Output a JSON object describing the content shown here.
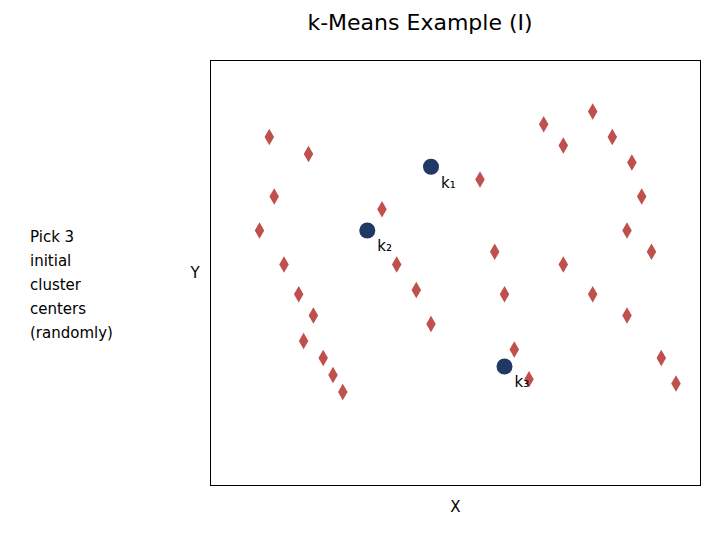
{
  "chart_data": {
    "type": "scatter",
    "title": "k-Means Example (I)",
    "x_label": "X",
    "y_label": "Y",
    "xlim": [
      0,
      10
    ],
    "ylim": [
      0,
      10
    ],
    "xticks": [],
    "yticks": [],
    "tick_labels": false,
    "grid": false,
    "series": [
      {
        "x": [
          1.2,
          2.0,
          1.3,
          1.0,
          1.5,
          1.8,
          2.1,
          1.9,
          2.3,
          2.5,
          2.7,
          3.5,
          3.8,
          4.2,
          4.5,
          5.5,
          5.8,
          6.0,
          6.2,
          6.5,
          6.8,
          7.2,
          7.8,
          8.2,
          8.6,
          8.8,
          8.5,
          9.0,
          7.2,
          7.8,
          8.5,
          9.2,
          9.5
        ],
        "y": [
          8.2,
          7.8,
          6.8,
          6.0,
          5.2,
          4.5,
          4.0,
          3.4,
          3.0,
          2.6,
          2.2,
          6.5,
          5.2,
          4.6,
          3.8,
          7.2,
          5.5,
          4.5,
          3.2,
          2.5,
          8.5,
          8.0,
          8.8,
          8.2,
          7.6,
          6.8,
          6.0,
          5.5,
          5.2,
          4.5,
          4.0,
          3.0,
          2.4
        ],
        "color": "#c0504d",
        "marker": "diamond"
      },
      {
        "x": [
          4.5,
          3.2,
          6.0
        ],
        "y": [
          7.5,
          6.0,
          2.8
        ],
        "labels": [
          "k₁",
          "k₂",
          "k₃"
        ],
        "color": "#1f3864",
        "marker": "circle"
      }
    ],
    "annotations": [
      "Pick 3\ninitial\ncluster\ncenters\n(randomly)"
    ]
  }
}
